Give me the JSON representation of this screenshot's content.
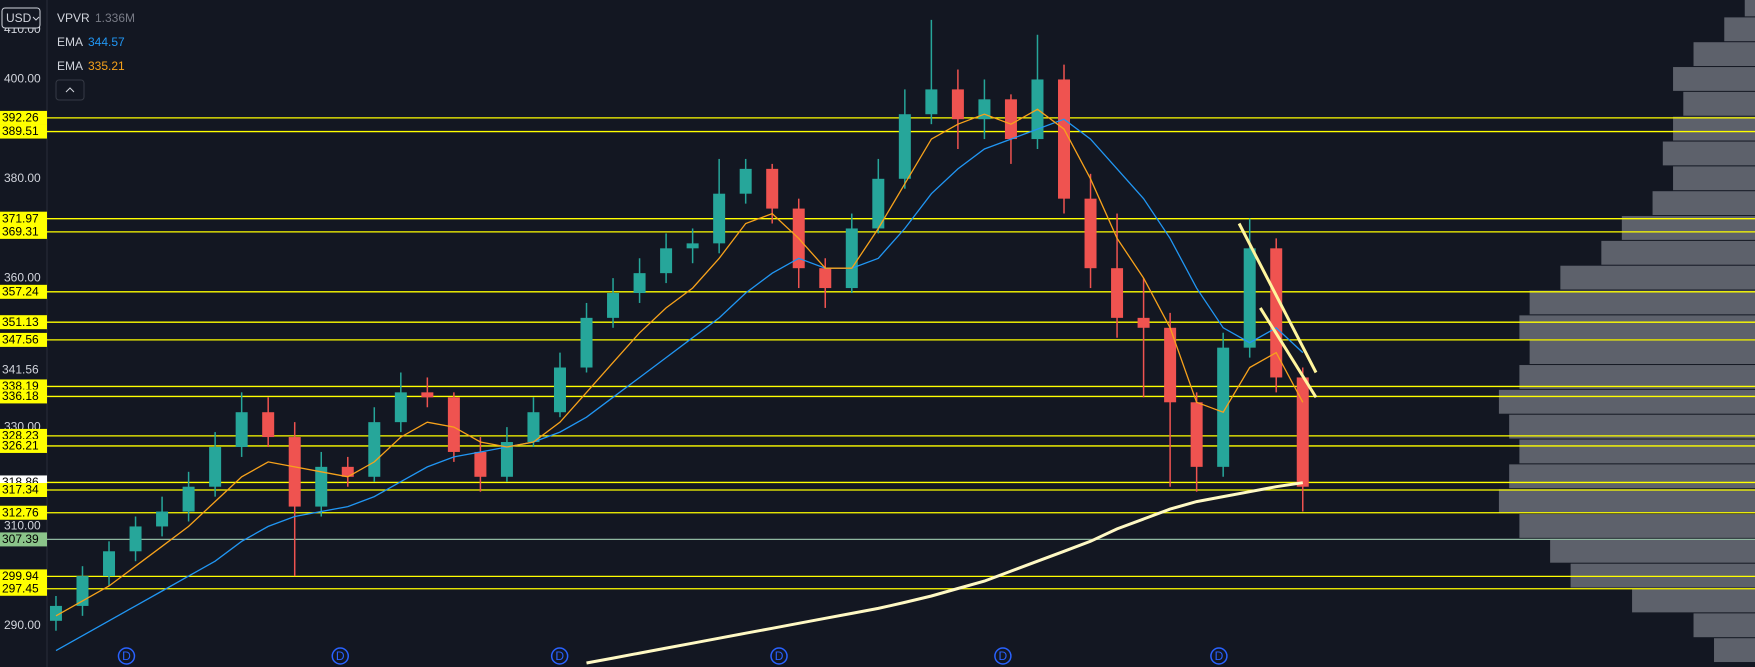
{
  "chart_data": {
    "type": "candlestick",
    "currency": "USD",
    "ylim": [
      281.7,
      416.0
    ],
    "yticks": [
      {
        "value": 290,
        "label": "290.00"
      },
      {
        "value": 310,
        "label": "310.00"
      },
      {
        "value": 330,
        "label": "330.00"
      },
      {
        "value": 360,
        "label": "360.00"
      },
      {
        "value": 380,
        "label": "380.00"
      },
      {
        "value": 400,
        "label": "400.00"
      },
      {
        "value": 410,
        "label": "410.00"
      }
    ],
    "up_color": "#26a69a",
    "down_color": "#ef5350",
    "open": [
      291,
      294,
      300,
      305,
      310,
      313,
      318,
      326,
      333,
      328,
      314,
      322,
      320,
      331,
      337,
      336,
      325,
      320,
      327,
      333,
      342,
      352,
      357,
      361,
      366,
      367,
      377,
      382,
      374,
      362,
      358,
      370,
      380,
      393,
      398,
      392,
      396,
      388,
      400,
      376,
      362,
      352,
      350,
      335,
      322,
      346,
      366,
      340
    ],
    "high": [
      296,
      302,
      307,
      312,
      316,
      321,
      329,
      337,
      336,
      331,
      325,
      324,
      334,
      341,
      340,
      337,
      328,
      330,
      336,
      345,
      355,
      360,
      364,
      369,
      370,
      384,
      384,
      383,
      376,
      364,
      373,
      384,
      398,
      412,
      402,
      400,
      397,
      409,
      403,
      381,
      373,
      360,
      353,
      337,
      349,
      372,
      368,
      342
    ],
    "low": [
      289,
      292,
      298,
      303,
      308,
      311,
      316,
      324,
      326,
      300,
      312,
      318,
      319,
      329,
      334,
      323,
      317,
      319,
      326,
      332,
      341,
      350,
      355,
      359,
      363,
      365,
      375,
      371,
      358,
      354,
      357,
      369,
      378,
      391,
      386,
      388,
      383,
      386,
      373,
      358,
      348,
      336,
      318,
      317,
      320,
      344,
      337,
      313
    ],
    "close": [
      294,
      300,
      305,
      310,
      313,
      318,
      326,
      333,
      328,
      314,
      322,
      320,
      331,
      337,
      336,
      325,
      320,
      327,
      333,
      342,
      352,
      357,
      361,
      366,
      367,
      377,
      382,
      374,
      362,
      358,
      370,
      380,
      393,
      398,
      392,
      396,
      388,
      400,
      376,
      362,
      352,
      350,
      335,
      322,
      346,
      366,
      340,
      318
    ],
    "vpvr": {
      "name": "VPVR",
      "total": "1.336M"
    },
    "series": [
      {
        "name": "EMA",
        "color": "#2196f3",
        "legend_value": 344.57,
        "values": [
          285,
          288,
          291,
          294,
          297,
          300,
          303,
          307,
          310,
          312,
          313,
          314,
          316,
          319,
          322,
          324,
          325,
          326,
          327,
          329,
          332,
          336,
          340,
          344,
          348,
          352,
          357,
          361,
          364,
          362,
          362,
          364,
          370,
          377,
          382,
          386,
          388,
          390,
          392,
          388,
          382,
          376,
          368,
          358,
          350,
          347,
          350,
          345
        ]
      },
      {
        "name": "EMA",
        "color": "#f7a21b",
        "legend_value": 335.21,
        "values": [
          292,
          295,
          298,
          302,
          306,
          310,
          315,
          320,
          323,
          322,
          321,
          320,
          323,
          328,
          331,
          330,
          327,
          326,
          327,
          331,
          337,
          343,
          349,
          354,
          358,
          364,
          371,
          373,
          368,
          362,
          362,
          370,
          379,
          388,
          391,
          393,
          391,
          394,
          390,
          380,
          368,
          360,
          350,
          335,
          333,
          342,
          345,
          335
        ]
      },
      {
        "color": "#fff9c4",
        "values": [
          null,
          null,
          null,
          null,
          null,
          null,
          null,
          null,
          null,
          null,
          null,
          null,
          null,
          null,
          null,
          null,
          null,
          null,
          null,
          null,
          282.5,
          283.5,
          284.5,
          285.5,
          286.5,
          287.5,
          288.5,
          289.5,
          290.5,
          291.5,
          292.5,
          293.5,
          294.7,
          296,
          297.5,
          299,
          301,
          303,
          305,
          307,
          309.5,
          311.5,
          313.5,
          315,
          316,
          317,
          318,
          318.8
        ]
      }
    ],
    "trendlines": [
      {
        "x": [
          44.6,
          47.5
        ],
        "values": [
          371,
          341
        ],
        "color": "#fff59d"
      },
      {
        "x": [
          45.4,
          47.5
        ],
        "values": [
          354,
          336
        ],
        "color": "#fff59d"
      }
    ],
    "levels": [
      {
        "value": 392.26,
        "style": "yellow"
      },
      {
        "value": 389.51,
        "style": "yellow"
      },
      {
        "value": 371.97,
        "style": "yellow"
      },
      {
        "value": 369.31,
        "style": "yellow"
      },
      {
        "value": 357.24,
        "style": "yellow"
      },
      {
        "value": 351.13,
        "style": "yellow"
      },
      {
        "value": 347.56,
        "style": "yellow"
      },
      {
        "value": 341.56,
        "style": "label"
      },
      {
        "value": 338.19,
        "style": "yellow"
      },
      {
        "value": 336.18,
        "style": "yellow"
      },
      {
        "value": 328.23,
        "style": "yellow"
      },
      {
        "value": 326.21,
        "style": "yellow"
      },
      {
        "value": 318.86,
        "style": "white"
      },
      {
        "value": 317.34,
        "style": "yellow"
      },
      {
        "value": 312.76,
        "style": "yellow"
      },
      {
        "value": 307.39,
        "style": "green"
      },
      {
        "value": 299.94,
        "style": "yellow"
      },
      {
        "value": 297.45,
        "style": "yellow"
      }
    ],
    "profile": {
      "color": "#6b6e78",
      "xlim": [
        0,
        260
      ],
      "bins": [
        282.5,
        287.5,
        292.5,
        297.5,
        302.5,
        307.5,
        312.5,
        317.5,
        322.5,
        327.5,
        332.5,
        337.5,
        342.5,
        347.5,
        352.5,
        357.5,
        362.5,
        367.5,
        372.5,
        377.5,
        382.5,
        387.5,
        392.5,
        397.5,
        402.5,
        407.5,
        412.5,
        417.5
      ],
      "values": [
        40,
        60,
        120,
        180,
        200,
        230,
        250,
        240,
        230,
        240,
        250,
        230,
        220,
        230,
        220,
        190,
        150,
        130,
        100,
        80,
        90,
        80,
        70,
        80,
        60,
        30,
        10
      ]
    },
    "markers": [
      "D",
      "D",
      "D",
      "D",
      "D",
      "D"
    ]
  }
}
